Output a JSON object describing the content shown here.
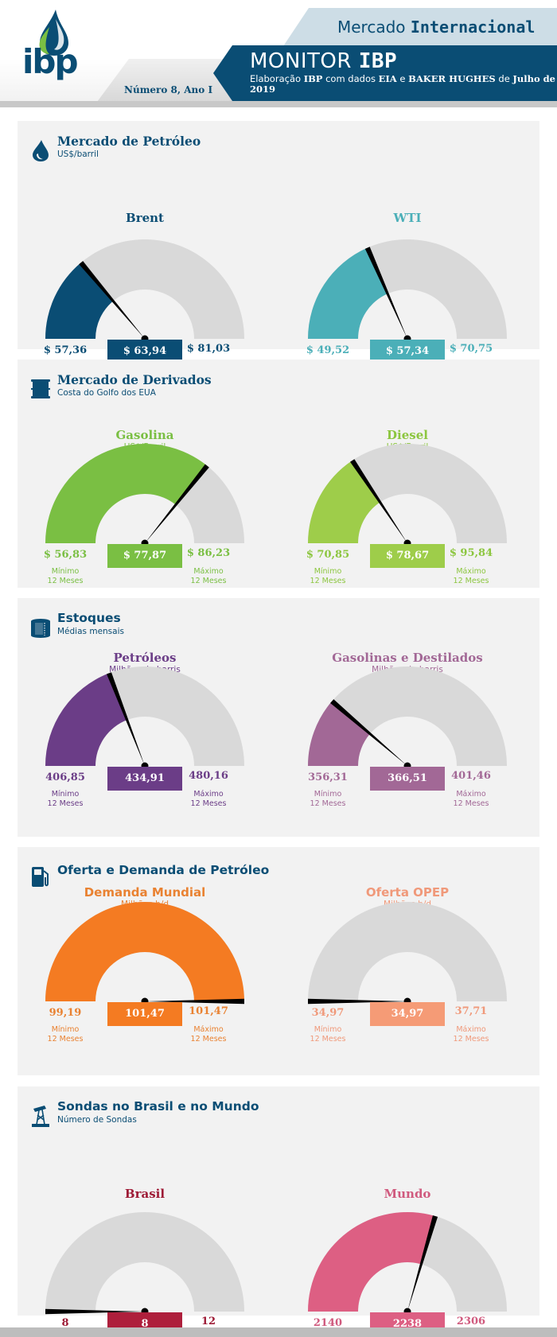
{
  "header": {
    "logo_text": "ibp",
    "issue": "Número 8, Ano I",
    "section_prefix": "Mercado ",
    "section_bold": "Internacional",
    "title_prefix": "MONITOR ",
    "title_bold": "IBP",
    "subtitle_parts": [
      "Elaboração ",
      "IBP",
      " com dados ",
      "EIA",
      " e ",
      "BAKER HUGHES",
      " de ",
      "Julho de 2019"
    ]
  },
  "labels": {
    "min_line1": "Mínimo",
    "max_line1": "Máximo",
    "period": "12 Meses"
  },
  "chart_data": [
    {
      "type": "gauge",
      "panel": "Mercado de Petróleo",
      "title": "Brent",
      "unit": "",
      "min": 57.36,
      "value": 63.94,
      "max": 81.03,
      "min_label": "$ 57,36",
      "value_label": "$ 63,94",
      "max_label": "$ 81,03",
      "color": "#0a4d74",
      "text_color": "#0a4d74"
    },
    {
      "type": "gauge",
      "panel": "Mercado de Petróleo",
      "title": "WTI",
      "unit": "",
      "min": 49.52,
      "value": 57.34,
      "max": 70.75,
      "min_label": "$ 49,52",
      "value_label": "$ 57,34",
      "max_label": "$ 70,75",
      "color": "#4bafb8",
      "text_color": "#4bafb8"
    },
    {
      "type": "gauge",
      "panel": "Mercado de Derivados",
      "title": "Gasolina",
      "unit": "US$/Barril",
      "min": 56.83,
      "value": 77.87,
      "max": 86.23,
      "min_label": "$ 56,83",
      "value_label": "$ 77,87",
      "max_label": "$ 86,23",
      "color": "#7abf43",
      "text_color": "#7abf43"
    },
    {
      "type": "gauge",
      "panel": "Mercado de Derivados",
      "title": "Diesel",
      "unit": "US$/Barril",
      "min": 70.85,
      "value": 78.67,
      "max": 95.84,
      "min_label": "$ 70,85",
      "value_label": "$ 78,67",
      "max_label": "$ 95,84",
      "color": "#9ecd4a",
      "text_color": "#8cc63f"
    },
    {
      "type": "gauge",
      "panel": "Estoques",
      "title": "Petróleos",
      "unit": "Milhões de barris",
      "min": 406.85,
      "value": 434.91,
      "max": 480.16,
      "min_label": "406,85",
      "value_label": "434,91",
      "max_label": "480,16",
      "color": "#6b3d87",
      "text_color": "#6b3d87"
    },
    {
      "type": "gauge",
      "panel": "Estoques",
      "title": "Gasolinas e Destilados",
      "unit": "Milhões de barris",
      "min": 356.31,
      "value": 366.51,
      "max": 401.46,
      "min_label": "356,31",
      "value_label": "366,51",
      "max_label": "401,46",
      "color": "#a26896",
      "text_color": "#a26896"
    },
    {
      "type": "gauge",
      "panel": "Oferta e Demanda de Petróleo",
      "title": "Demanda Mundial",
      "unit": "Milhões b/d",
      "min": 99.19,
      "value": 101.47,
      "max": 101.47,
      "min_label": "99,19",
      "value_label": "101,47",
      "max_label": "101,47",
      "color": "#f47b22",
      "text_color": "#e98232"
    },
    {
      "type": "gauge",
      "panel": "Oferta e Demanda de Petróleo",
      "title": "Oferta OPEP",
      "unit": "Milhões b/d",
      "min": 34.97,
      "value": 34.97,
      "max": 37.71,
      "min_label": "34,97",
      "value_label": "34,97",
      "max_label": "37,71",
      "color": "#f59b76",
      "text_color": "#f0997a"
    },
    {
      "type": "gauge",
      "panel": "Sondas no Brasil e no Mundo",
      "title": "Brasil",
      "unit": "",
      "min": 8,
      "value": 8,
      "max": 12,
      "min_label": "8",
      "value_label": "8",
      "max_label": "12",
      "color": "#ae1f3c",
      "text_color": "#9e1b36"
    },
    {
      "type": "gauge",
      "panel": "Sondas no Brasil e no Mundo",
      "title": "Mundo",
      "unit": "",
      "min": 2140,
      "value": 2238,
      "max": 2306,
      "min_label": "2140",
      "value_label": "2238",
      "max_label": "2306",
      "color": "#dd5f83",
      "text_color": "#d05a7e"
    }
  ],
  "panels": [
    {
      "title": "Mercado de Petróleo",
      "subtitle": "US$/barril",
      "icon": "oil-drop-icon"
    },
    {
      "title": "Mercado de Derivados",
      "subtitle": "Costa do Golfo dos EUA",
      "icon": "barrel-icon"
    },
    {
      "title": "Estoques",
      "subtitle": "Médias mensais",
      "icon": "storage-tank-icon"
    },
    {
      "title": "Oferta e Demanda de Petróleo",
      "subtitle": "",
      "icon": "fuel-pump-icon"
    },
    {
      "title": "Sondas no Brasil e no Mundo",
      "subtitle": "Número de Sondas",
      "icon": "oil-rig-icon"
    }
  ],
  "colors": {
    "primary": "#0a4d74",
    "gauge_track": "#d9d9d9",
    "panel_bg": "#f2f2f2"
  }
}
